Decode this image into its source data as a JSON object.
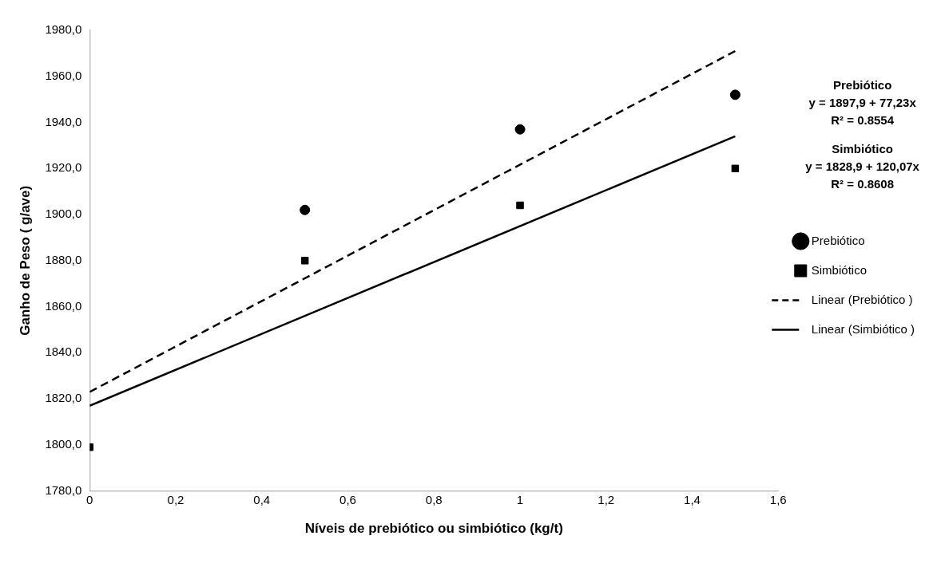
{
  "chart_data": {
    "type": "scatter",
    "xlabel": "Níveis de prebiótico ou simbiótico (kg/t)",
    "ylabel": "Ganho de Peso ( g/ave)",
    "xlim": [
      0,
      1.6
    ],
    "xticks": [
      0,
      {
        "value": 0.2,
        "label": "0,2"
      },
      {
        "value": 0.4,
        "label": "0,4"
      },
      {
        "value": 0.6,
        "label": "0,6"
      },
      {
        "value": 0.8,
        "label": "0,8"
      },
      1,
      {
        "value": 1.2,
        "label": "1,2"
      },
      {
        "value": 1.4,
        "label": "1,4"
      },
      {
        "value": 1.6,
        "label": "1,6"
      }
    ],
    "ylim": [
      1780,
      1980
    ],
    "yticks": [
      {
        "value": 1780,
        "label": "1780,0"
      },
      {
        "value": 1800,
        "label": "1800,0"
      },
      {
        "value": 1820,
        "label": "1820,0"
      },
      {
        "value": 1840,
        "label": "1840,0"
      },
      {
        "value": 1860,
        "label": "1860,0"
      },
      {
        "value": 1880,
        "label": "1880,0"
      },
      {
        "value": 1900,
        "label": "1900,0"
      },
      {
        "value": 1920,
        "label": "1920,0"
      },
      {
        "value": 1940,
        "label": "1940,0"
      },
      {
        "value": 1960,
        "label": "1960,0"
      },
      {
        "value": 1980,
        "label": "1980,0"
      }
    ],
    "grid": false,
    "legend": "right",
    "series": [
      {
        "name": "Prebiótico",
        "type": "scatter",
        "marker": "circle",
        "color": "#000000",
        "x": [
          0.5,
          1,
          1.5
        ],
        "values": [
          1902,
          1937,
          1952
        ]
      },
      {
        "name": "Simbiótico",
        "type": "scatter",
        "marker": "square",
        "color": "#000000",
        "x": [
          0,
          0.5,
          1,
          1.5
        ],
        "values": [
          1799,
          1880,
          1904,
          1920
        ]
      },
      {
        "name": "Linear (Prebiótico )",
        "type": "line",
        "marker": "none",
        "line_style": "dashed",
        "color": "#000000",
        "x": [
          0,
          1.5
        ],
        "values": [
          1823,
          1971
        ]
      },
      {
        "name": "Linear (Simbiótico )",
        "type": "line",
        "marker": "none",
        "line_style": "solid",
        "color": "#000000",
        "x": [
          0,
          1.5
        ],
        "values": [
          1817,
          1934
        ]
      }
    ],
    "annotations": [
      "Prebiótico",
      "y = 1897,9 + 77,23x",
      "R² = 0.8554",
      "Simbiótico",
      "y = 1828,9 + 120,07x",
      "R² = 0.8608"
    ]
  }
}
